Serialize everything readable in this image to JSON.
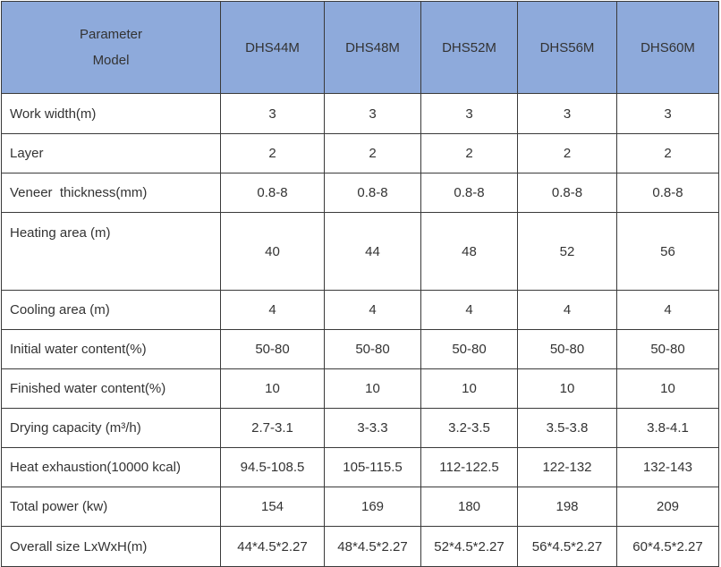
{
  "table": {
    "header": {
      "parameter": "Parameter",
      "model": "Model",
      "columns": [
        "DHS44M",
        "DHS48M",
        "DHS52M",
        "DHS56M",
        "DHS60M"
      ]
    },
    "rows": [
      [
        "Work width(m)",
        "3",
        "3",
        "3",
        "3",
        "3"
      ],
      [
        "Layer",
        "2",
        "2",
        "2",
        "2",
        "2"
      ],
      [
        "Veneer  thickness(mm)",
        "0.8-8",
        "0.8-8",
        "0.8-8",
        "0.8-8",
        "0.8-8"
      ],
      [
        "Heating area (m)",
        "40",
        "44",
        "48",
        "52",
        "56"
      ],
      [
        "Cooling area (m)",
        "4",
        "4",
        "4",
        "4",
        "4"
      ],
      [
        "Initial water content(%)",
        "50-80",
        "50-80",
        "50-80",
        "50-80",
        "50-80"
      ],
      [
        "Finished water content(%)",
        "10",
        "10",
        "10",
        "10",
        "10"
      ],
      [
        "Drying capacity (m³/h)",
        "2.7-3.1",
        "3-3.3",
        "3.2-3.5",
        "3.5-3.8",
        "3.8-4.1"
      ],
      [
        "Heat exhaustion(10000 kcal)",
        "94.5-108.5",
        "105-115.5",
        "112-122.5",
        "122-132",
        "132-143"
      ],
      [
        "Total power (kw)",
        "154",
        "169",
        "180",
        "198",
        "209"
      ],
      [
        "Overall size LxWxH(m)",
        "44*4.5*2.27",
        "48*4.5*2.27",
        "52*4.5*2.27",
        "56*4.5*2.27",
        "60*4.5*2.27"
      ]
    ]
  }
}
